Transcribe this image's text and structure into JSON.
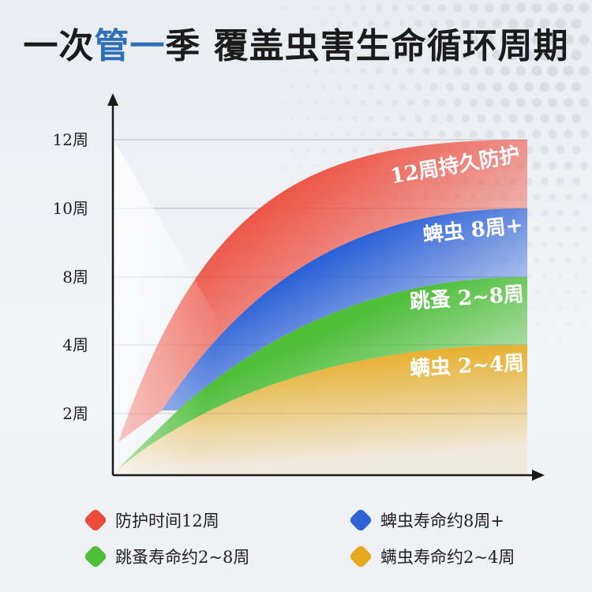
{
  "title": {
    "part1": "一次",
    "part2": "管",
    "part3": "一",
    "part4": "季",
    "part5": " 覆盖虫害生命循环周期"
  },
  "colors": {
    "protection": "#ee4b3b",
    "aphid": "#2e63d8",
    "flea": "#4fbf3a",
    "mite": "#e6a91d",
    "title_accent": "#2f6fb8"
  },
  "chart_data": {
    "type": "area",
    "y_ticks": [
      "2周",
      "4周",
      "8周",
      "10周",
      "12周"
    ],
    "series": [
      {
        "name": "12周持久防护",
        "end_value": 12,
        "color": "#ee4b3b"
      },
      {
        "name": "蜱虫 8周+",
        "end_value": 10,
        "color": "#2e63d8"
      },
      {
        "name": "跳蚤 2~8周",
        "end_value": 8,
        "color": "#4fbf3a"
      },
      {
        "name": "螨虫 2~4周",
        "end_value": 4,
        "color": "#e6a91d"
      }
    ],
    "grid": true
  },
  "legend": [
    {
      "label": "防护时间12周",
      "color": "#ee4b3b"
    },
    {
      "label": "蜱虫寿命约8周+",
      "color": "#2e63d8"
    },
    {
      "label": "跳蚤寿命约2~8周",
      "color": "#4fbf3a"
    },
    {
      "label": "螨虫寿命约2~4周",
      "color": "#e6a91d"
    }
  ]
}
